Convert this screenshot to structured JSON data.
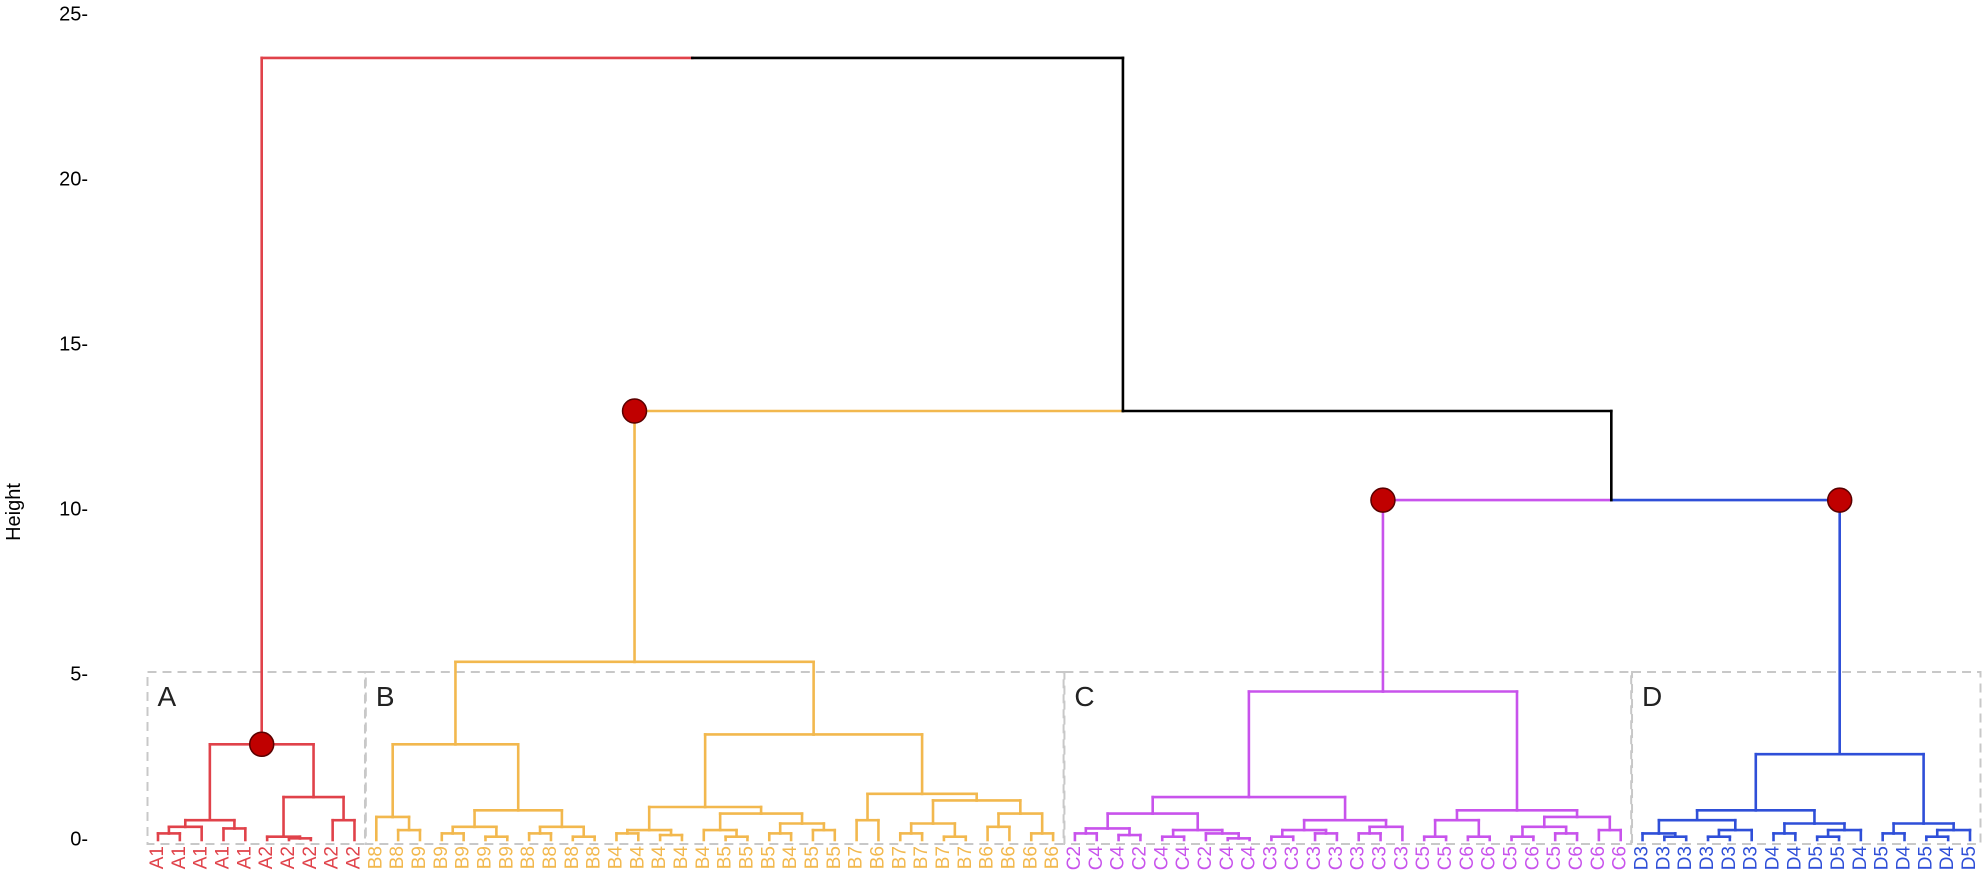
{
  "chart_data": {
    "type": "dendrogram",
    "y_label": "Height",
    "ylim": [
      0,
      25
    ],
    "yticks": [
      {
        "value": 0,
        "label": "0-"
      },
      {
        "value": 5,
        "label": "5-"
      },
      {
        "value": 10,
        "label": "10-"
      },
      {
        "value": 15,
        "label": "15-"
      },
      {
        "value": 20,
        "label": "20-"
      },
      {
        "value": 25,
        "label": "25-"
      }
    ],
    "clusters": [
      {
        "label": "A",
        "color": "#e0424a",
        "marker": 2.9
      },
      {
        "label": "B",
        "color": "#f2b84e",
        "marker": 13
      },
      {
        "label": "C",
        "color": "#c853ec",
        "marker": 10.3
      },
      {
        "label": "D",
        "color": "#2f4fd8",
        "marker": 10.3
      }
    ],
    "marker_color": "#c00000",
    "tree": [
      23.7,
      [
        2.9,
        [
          0.6,
          [
            0.4,
            [
              0.2,
              "A1",
              "A1"
            ],
            "A1"
          ],
          [
            0.35,
            "A1",
            "A1"
          ]
        ],
        [
          1.3,
          [
            0.1,
            "A2",
            [
              0.05,
              "A2",
              "A2"
            ]
          ],
          [
            0.6,
            "A2",
            "A2"
          ]
        ]
      ],
      [
        13,
        [
          5.4,
          [
            2.9,
            [
              0.7,
              "B8",
              [
                0.3,
                "B8",
                "B9"
              ]
            ],
            [
              0.9,
              [
                0.4,
                [
                  0.2,
                  "B9",
                  "B9"
                ],
                [
                  0.1,
                  "B9",
                  "B9"
                ]
              ],
              [
                0.4,
                [
                  0.2,
                  "B8",
                  "B8"
                ],
                [
                  0.1,
                  "B8",
                  "B8"
                ]
              ]
            ]
          ],
          [
            3.2,
            [
              1.0,
              [
                0.3,
                [
                  0.2,
                  "B4",
                  "B4"
                ],
                [
                  0.15,
                  "B4",
                  "B4"
                ]
              ],
              [
                0.8,
                [
                  0.3,
                  "B4",
                  [
                    0.1,
                    "B5",
                    "B5"
                  ]
                ],
                [
                  0.5,
                  [
                    0.2,
                    "B5",
                    "B4"
                  ],
                  [
                    0.3,
                    "B5",
                    "B5"
                  ]
                ]
              ]
            ],
            [
              1.4,
              [
                0.6,
                "B7",
                "B6"
              ],
              [
                1.2,
                [
                  0.5,
                  [
                    0.2,
                    "B7",
                    "B7"
                  ],
                  [
                    0.1,
                    "B7",
                    "B7"
                  ]
                ],
                [
                  0.8,
                  [
                    0.4,
                    "B6",
                    "B6"
                  ],
                  [
                    0.2,
                    "B6",
                    "B6"
                  ]
                ]
              ]
            ]
          ]
        ],
        [
          10.3,
          [
            4.5,
            [
              1.3,
              [
                0.8,
                [
                  0.35,
                  [
                    0.2,
                    "C2",
                    "C4"
                  ],
                  [
                    0.15,
                    "C4",
                    "C2"
                  ]
                ],
                [
                  0.3,
                  [
                    0.1,
                    "C4",
                    "C4"
                  ],
                  [
                    0.2,
                    "C2",
                    [
                      0.05,
                      "C4",
                      "C4"
                    ]
                  ]
                ]
              ],
              [
                0.6,
                [
                  0.3,
                  [
                    0.1,
                    "C3",
                    "C3"
                  ],
                  [
                    0.2,
                    "C3",
                    "C3"
                  ]
                ],
                [
                  0.4,
                  [
                    0.2,
                    "C3",
                    "C3"
                  ],
                  "C3"
                ]
              ]
            ],
            [
              0.9,
              [
                0.6,
                [
                  0.1,
                  "C5",
                  "C5"
                ],
                [
                  0.1,
                  "C6",
                  "C6"
                ]
              ],
              [
                0.7,
                [
                  0.4,
                  [
                    0.1,
                    "C5",
                    "C6"
                  ],
                  [
                    0.2,
                    "C5",
                    "C6"
                  ]
                ],
                [
                  0.3,
                  "C6",
                  "C6"
                ]
              ]
            ]
          ],
          [
            2.6,
            [
              0.9,
              [
                0.6,
                [
                  0.2,
                  "D3",
                  [
                    0.1,
                    "D3",
                    "D3"
                  ]
                ],
                [
                  0.3,
                  [
                    0.1,
                    "D3",
                    "D3"
                  ],
                  "D3"
                ]
              ],
              [
                0.5,
                [
                  0.2,
                  "D4",
                  "D4"
                ],
                [
                  0.3,
                  [
                    0.1,
                    "D5",
                    "D5"
                  ],
                  "D4"
                ]
              ]
            ],
            [
              0.5,
              [
                0.2,
                "D5",
                "D4"
              ],
              [
                0.3,
                [
                  0.1,
                  "D5",
                  "D4"
                ],
                "D5"
              ]
            ]
          ]
        ]
      ]
    ]
  }
}
